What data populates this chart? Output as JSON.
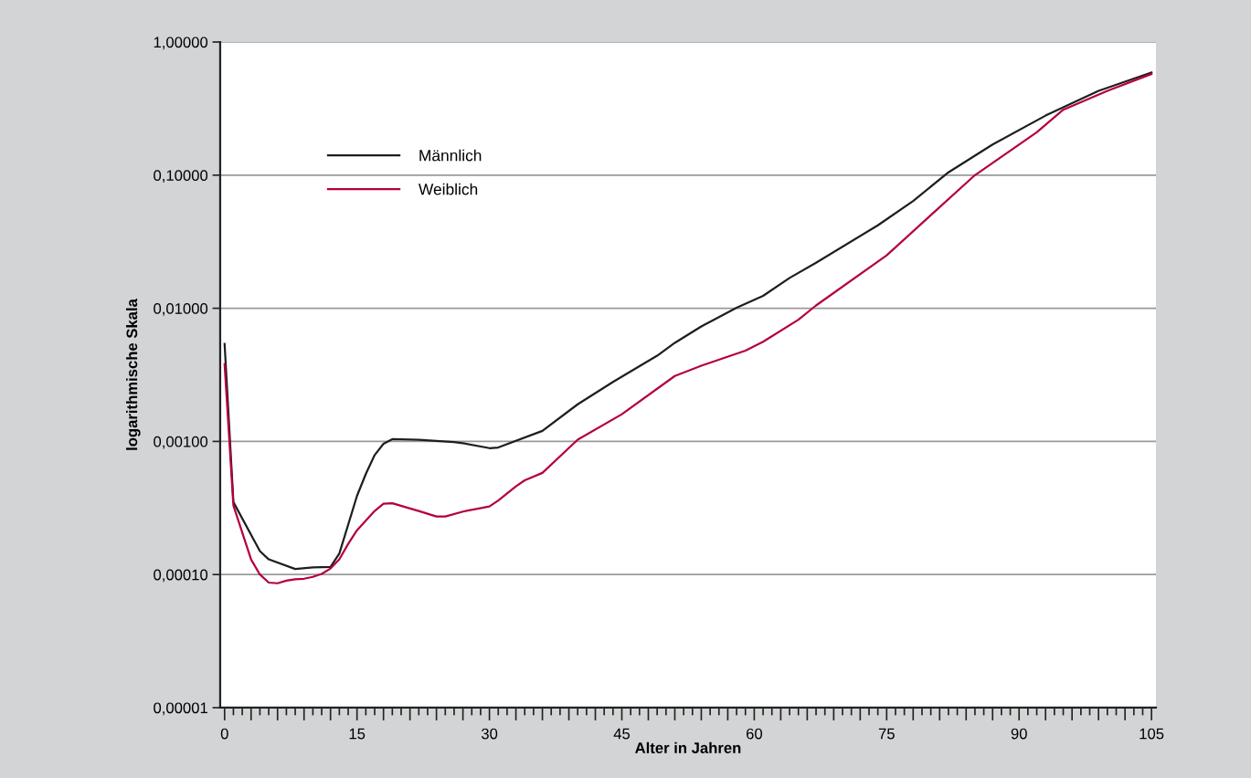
{
  "chart_data": {
    "type": "line",
    "xlabel": "Alter in Jahren",
    "ylabel": "logarithmische Skala",
    "log": "y",
    "xlim": [
      -0.5,
      105.5
    ],
    "ylim": [
      1e-05,
      1
    ],
    "xticks": [
      0,
      {
        "value": 3,
        "label": null
      },
      {
        "value": 6,
        "label": null
      },
      {
        "value": 9,
        "label": null
      },
      {
        "value": 12,
        "label": null
      },
      15,
      {
        "value": 18,
        "label": null
      },
      {
        "value": 21,
        "label": null
      },
      {
        "value": 24,
        "label": null
      },
      {
        "value": 27,
        "label": null
      },
      30,
      {
        "value": 33,
        "label": null
      },
      {
        "value": 36,
        "label": null
      },
      {
        "value": 39,
        "label": null
      },
      {
        "value": 42,
        "label": null
      },
      45,
      {
        "value": 48,
        "label": null
      },
      {
        "value": 51,
        "label": null
      },
      {
        "value": 54,
        "label": null
      },
      {
        "value": 57,
        "label": null
      },
      60,
      {
        "value": 63,
        "label": null
      },
      {
        "value": 66,
        "label": null
      },
      {
        "value": 69,
        "label": null
      },
      {
        "value": 72,
        "label": null
      },
      75,
      {
        "value": 78,
        "label": null
      },
      {
        "value": 81,
        "label": null
      },
      {
        "value": 84,
        "label": null
      },
      {
        "value": 87,
        "label": null
      },
      90,
      {
        "value": 93,
        "label": null
      },
      {
        "value": 96,
        "label": null
      },
      {
        "value": 99,
        "label": null
      },
      {
        "value": 102,
        "label": null
      },
      105
    ],
    "yticks": [
      {
        "value": 1e-05,
        "label": "0,00001"
      },
      {
        "value": 0.0001,
        "label": "0,00010"
      },
      {
        "value": 0.001,
        "label": "0,00100"
      },
      {
        "value": 0.01,
        "label": "0,01000"
      },
      {
        "value": 0.1,
        "label": "0,10000"
      },
      {
        "value": 1,
        "label": "1,00000"
      }
    ],
    "grid": "y",
    "legend": "top left",
    "marker": "none",
    "line_style": "solid",
    "series": [
      {
        "name": "Männlich",
        "color": "#1e1e1e",
        "x": [
          0,
          1,
          4,
          5,
          8,
          10,
          12,
          13,
          15,
          16,
          17,
          18,
          19,
          22,
          26,
          27,
          30,
          31,
          36,
          40,
          44,
          49,
          51,
          54,
          58,
          61,
          64,
          67,
          74,
          78,
          82,
          87,
          93,
          99,
          105
        ],
        "values": [
          0.0054,
          0.00035,
          0.00015,
          0.00013,
          0.00011,
          0.000113,
          0.000114,
          0.000144,
          0.00039,
          0.00057,
          0.00079,
          0.00096,
          0.00104,
          0.00103,
          0.00099,
          0.00097,
          0.00089,
          0.0009,
          0.0012,
          0.0019,
          0.0028,
          0.0044,
          0.0055,
          0.0073,
          0.0101,
          0.0124,
          0.0169,
          0.022,
          0.042,
          0.064,
          0.105,
          0.17,
          0.28,
          0.43,
          0.59
        ]
      },
      {
        "name": "Weiblich",
        "color": "#b4003c",
        "x": [
          0,
          1,
          3,
          4,
          5,
          6,
          7,
          8,
          9,
          10,
          11,
          12,
          13,
          14,
          15,
          17,
          18,
          19,
          22,
          24,
          25,
          27,
          30,
          31,
          33,
          34,
          36,
          40,
          45,
          51,
          54,
          59,
          61,
          65,
          67,
          75,
          80,
          85,
          92,
          95,
          100,
          105
        ],
        "values": [
          0.0038,
          0.00033,
          0.00013,
          0.0001,
          8.7e-05,
          8.6e-05,
          9e-05,
          9.2e-05,
          9.3e-05,
          9.6e-05,
          0.000101,
          0.000111,
          0.00013,
          0.00017,
          0.000215,
          0.0003,
          0.00034,
          0.000343,
          0.0003,
          0.000273,
          0.000273,
          0.000297,
          0.000325,
          0.00036,
          0.00046,
          0.00051,
          0.00058,
          0.00103,
          0.0016,
          0.0031,
          0.0037,
          0.0048,
          0.0056,
          0.0082,
          0.0105,
          0.025,
          0.05,
          0.1,
          0.21,
          0.31,
          0.43,
          0.575
        ]
      }
    ]
  }
}
